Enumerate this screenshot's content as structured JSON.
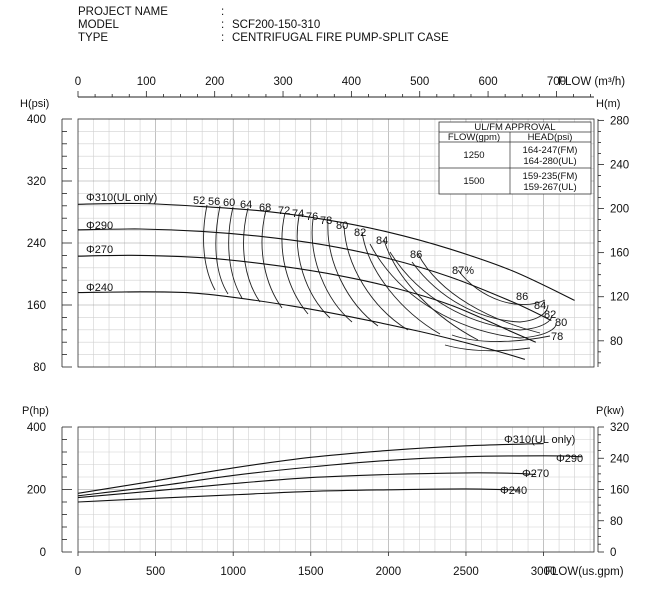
{
  "header": {
    "rows": [
      {
        "label": "PROJECT NAME",
        "colon": ":",
        "value": ""
      },
      {
        "label": "MODEL",
        "colon": ":",
        "value": "SCF200-150-310"
      },
      {
        "label": "TYPE",
        "colon": ":",
        "value": "CENTRIFUGAL FIRE PUMP-SPLIT CASE"
      }
    ]
  },
  "approval_table": {
    "title": "UL/FM APPROVAL",
    "col_flow": "FLOW(gpm)",
    "col_head": "HEAD(psi)",
    "rows": [
      {
        "flow": "1250",
        "head_fm": "164-247(FM)",
        "head_ul": "164-280(UL)"
      },
      {
        "flow": "1500",
        "head_fm": "159-235(FM)",
        "head_ul": "159-267(UL)"
      }
    ]
  },
  "chart_data": {
    "type": "line",
    "axes": {
      "flow_m3h": {
        "label": "FLOW (m³/h)",
        "ticks": [
          "0",
          "100",
          "200",
          "300",
          "400",
          "500",
          "600",
          "700"
        ],
        "range": [
          0,
          755
        ]
      },
      "flow_gpm": {
        "label": "FLOW(us.gpm)",
        "ticks": [
          "0",
          "500",
          "1000",
          "1500",
          "2000",
          "2500",
          "3000"
        ],
        "range": [
          0,
          3325
        ]
      },
      "head_psi": {
        "label": "H(psi)",
        "ticks": [
          "80",
          "160",
          "240",
          "320",
          "400"
        ],
        "range": [
          80,
          400
        ]
      },
      "head_m": {
        "label": "H(m)",
        "ticks": [
          "80",
          "120",
          "160",
          "200",
          "240",
          "280"
        ]
      },
      "power_hp": {
        "label": "P(hp)",
        "ticks": [
          "0",
          "200",
          "400"
        ],
        "range": [
          0,
          400
        ]
      },
      "power_kw": {
        "label": "P(kw)",
        "ticks": [
          "0",
          "80",
          "160",
          "240",
          "320"
        ]
      }
    },
    "grid": true,
    "head_curves": [
      {
        "name": "Φ310(UL only)",
        "points": [
          [
            0,
            290
          ],
          [
            400,
            291
          ],
          [
            800,
            287
          ],
          [
            1200,
            281
          ],
          [
            1600,
            270
          ],
          [
            2000,
            254
          ],
          [
            2400,
            232
          ],
          [
            2800,
            204
          ],
          [
            3200,
            166
          ]
        ]
      },
      {
        "name": "Φ290",
        "points": [
          [
            0,
            257
          ],
          [
            400,
            258
          ],
          [
            800,
            255
          ],
          [
            1200,
            248
          ],
          [
            1600,
            237
          ],
          [
            2000,
            220
          ],
          [
            2400,
            196
          ],
          [
            2800,
            164
          ],
          [
            3050,
            140
          ]
        ]
      },
      {
        "name": "Φ270",
        "points": [
          [
            0,
            223
          ],
          [
            400,
            224
          ],
          [
            800,
            221
          ],
          [
            1200,
            213
          ],
          [
            1600,
            201
          ],
          [
            2000,
            184
          ],
          [
            2400,
            160
          ],
          [
            2800,
            125
          ],
          [
            2950,
            112
          ]
        ]
      },
      {
        "name": "Φ240",
        "points": [
          [
            0,
            176
          ],
          [
            400,
            177
          ],
          [
            700,
            176
          ],
          [
            1000,
            170
          ],
          [
            1400,
            158
          ],
          [
            1800,
            143
          ],
          [
            2200,
            126
          ],
          [
            2600,
            106
          ],
          [
            2880,
            90
          ]
        ]
      }
    ],
    "power_curves": [
      {
        "name": "Φ310(UL only)",
        "points": [
          [
            0,
            188
          ],
          [
            500,
            228
          ],
          [
            1000,
            269
          ],
          [
            1500,
            303
          ],
          [
            2000,
            325
          ],
          [
            2500,
            340
          ],
          [
            3000,
            347
          ]
        ]
      },
      {
        "name": "Φ290",
        "points": [
          [
            0,
            180
          ],
          [
            500,
            210
          ],
          [
            1000,
            245
          ],
          [
            1500,
            272
          ],
          [
            2000,
            293
          ],
          [
            2500,
            305
          ],
          [
            3000,
            308
          ],
          [
            3250,
            305
          ]
        ]
      },
      {
        "name": "Φ270",
        "points": [
          [
            0,
            174
          ],
          [
            500,
            196
          ],
          [
            1000,
            219
          ],
          [
            1500,
            238
          ],
          [
            2000,
            248
          ],
          [
            2500,
            253
          ],
          [
            2800,
            252
          ],
          [
            2950,
            248
          ]
        ]
      },
      {
        "name": "Φ240",
        "points": [
          [
            0,
            160
          ],
          [
            500,
            172
          ],
          [
            1000,
            183
          ],
          [
            1500,
            194
          ],
          [
            2000,
            199
          ],
          [
            2500,
            202
          ],
          [
            2850,
            198
          ]
        ]
      }
    ],
    "efficiency_labels": [
      "52",
      "56",
      "60",
      "64",
      "68",
      "72",
      "74",
      "76",
      "78",
      "80",
      "82",
      "84",
      "86",
      "87%",
      "86",
      "84",
      "82",
      "80",
      "78"
    ]
  }
}
